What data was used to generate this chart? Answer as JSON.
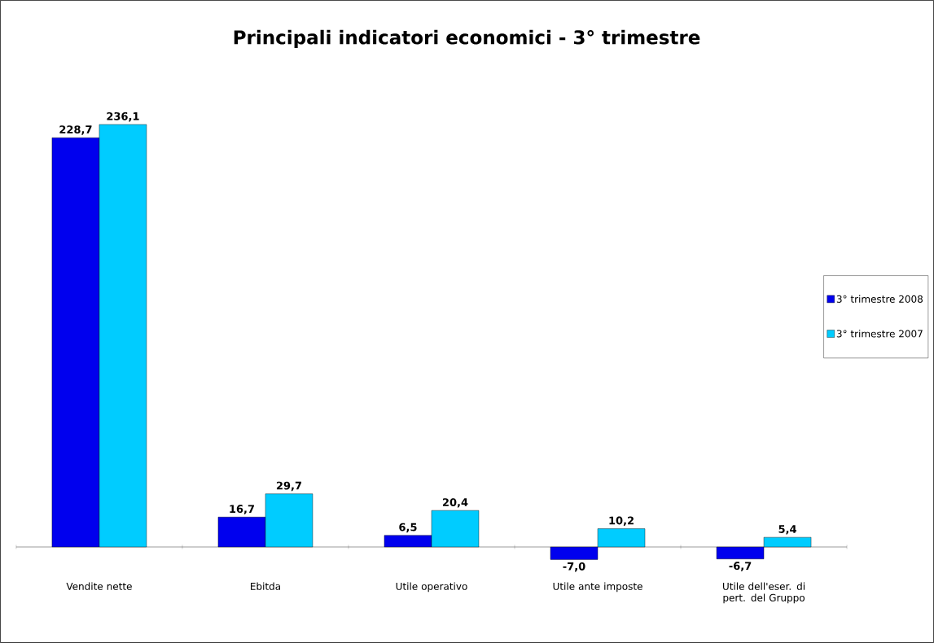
{
  "chart_data": {
    "type": "bar",
    "title": "Principali indicatori economici  -  3° trimestre",
    "categories": [
      "Vendite nette",
      "Ebitda",
      "Utile operativo",
      "Utile ante imposte",
      "Utile dell'eser. di pert. del Gruppo"
    ],
    "series": [
      {
        "name": "3° trimestre 2008",
        "color": "#0000ee",
        "values": [
          228.7,
          16.7,
          6.5,
          -7.0,
          -6.7
        ],
        "value_labels": [
          "228,7",
          "16,7",
          "6,5",
          "-7,0",
          "-6,7"
        ]
      },
      {
        "name": "3° trimestre 2007",
        "color": "#00ccff",
        "values": [
          236.1,
          29.7,
          20.4,
          10.2,
          5.4
        ],
        "value_labels": [
          "236,1",
          "29,7",
          "20,4",
          "10,2",
          "5,4"
        ]
      }
    ],
    "legend": "right",
    "grid": false
  }
}
